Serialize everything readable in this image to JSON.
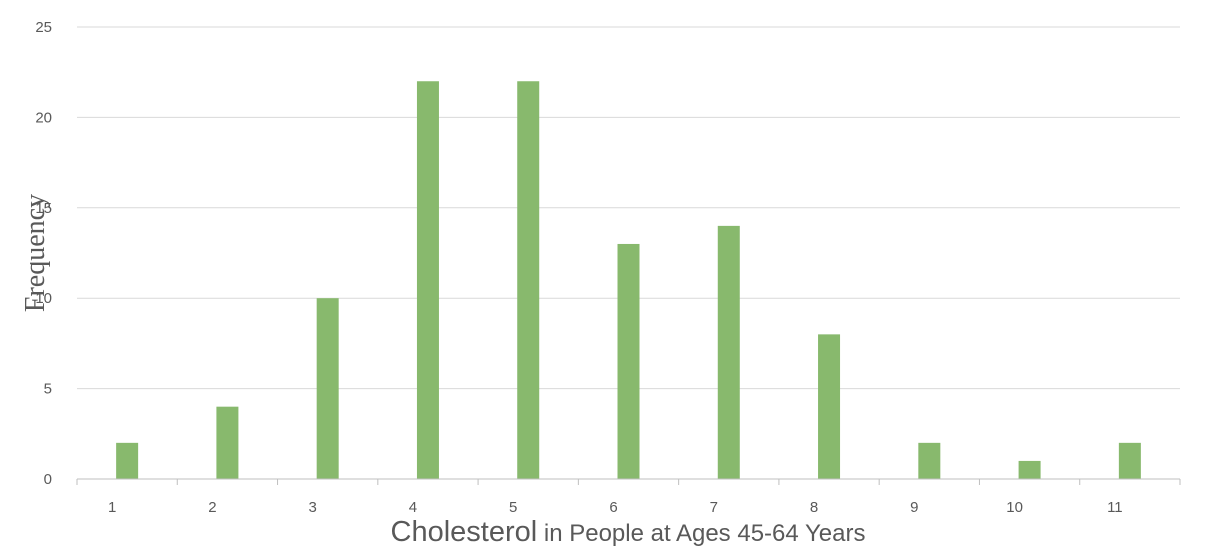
{
  "chart_data": {
    "type": "bar",
    "categories": [
      "1",
      "2",
      "3",
      "4",
      "5",
      "6",
      "7",
      "8",
      "9",
      "10",
      "11"
    ],
    "values": [
      2,
      4,
      10,
      22,
      22,
      13,
      14,
      8,
      2,
      1,
      2
    ],
    "xlabel_main": "Cholesterol",
    "xlabel_rest": " in People at Ages 45-64 Years",
    "ylabel": "Frequency",
    "ylim": [
      0,
      25
    ],
    "yticks": [
      0,
      5,
      10,
      15,
      20,
      25
    ],
    "grid": true,
    "bar_color": "#88b96d",
    "grid_color": "#d9d9d9",
    "axis_color": "#bfbfbf"
  }
}
